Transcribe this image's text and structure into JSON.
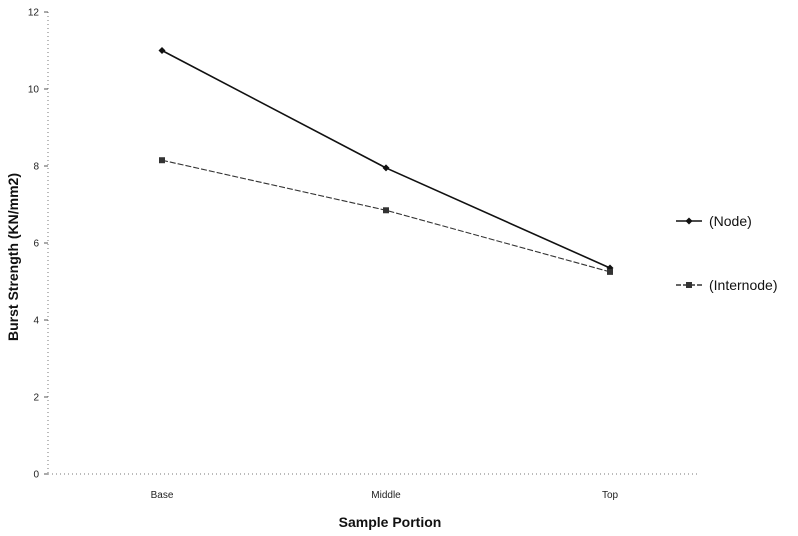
{
  "chart_data": {
    "type": "line",
    "title": "",
    "xlabel": "Sample Portion",
    "ylabel": "Burst Strength (KN/mm2)",
    "categories": [
      "Base",
      "Middle",
      "Top"
    ],
    "ylim": [
      0,
      12
    ],
    "yticks": [
      0,
      2,
      4,
      6,
      8,
      10,
      12
    ],
    "grid": false,
    "legend_position": "right",
    "series": [
      {
        "name": "(Node)",
        "values": [
          11.0,
          7.95,
          5.35
        ],
        "color": "#111111",
        "marker": "diamond",
        "line": "solid"
      },
      {
        "name": "(Internode)",
        "values": [
          8.15,
          6.85,
          5.25
        ],
        "color": "#333333",
        "marker": "square",
        "line": "dashed"
      }
    ]
  }
}
